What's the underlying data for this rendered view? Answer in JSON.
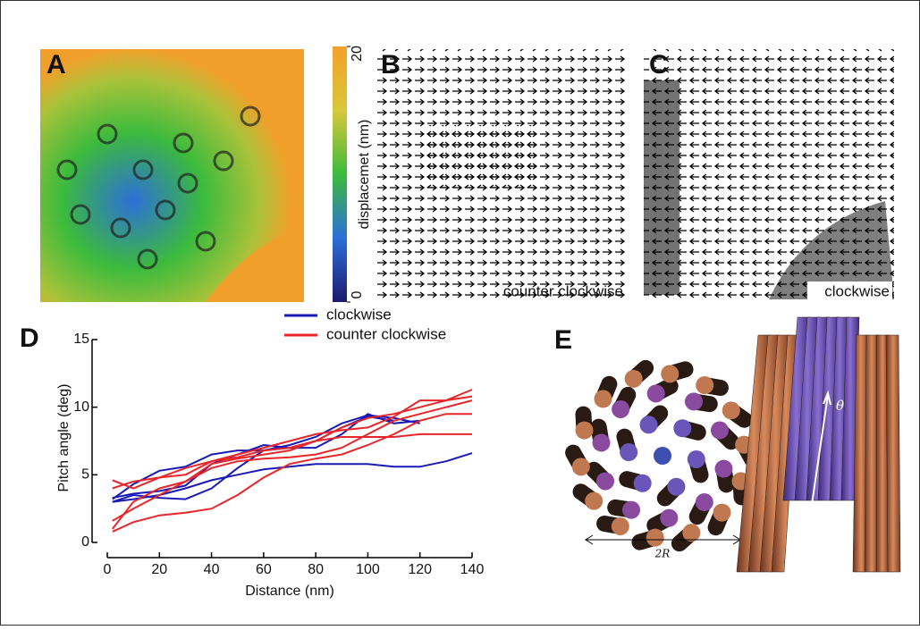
{
  "panel_labels": [
    "A",
    "B",
    "C",
    "D",
    "E"
  ],
  "colorbar": {
    "label": "displacemet (nm)",
    "ticks": [
      0,
      20
    ],
    "lim": [
      0,
      20
    ]
  },
  "annotations": {
    "B": "counter clockwise",
    "C": "clockwise",
    "E_width": "2R",
    "E_angle": "θ"
  },
  "chart_data": {
    "type": "line",
    "xlabel": "Distance (nm)",
    "ylabel": "Pitch angle  (deg)",
    "xlim": [
      0,
      140
    ],
    "ylim": [
      0,
      15
    ],
    "xticks": [
      0,
      20,
      40,
      60,
      80,
      100,
      120,
      140
    ],
    "yticks": [
      0,
      5,
      10,
      15
    ],
    "legend": [
      {
        "name": "clockwise",
        "color": "#1a1ab8"
      },
      {
        "name": "counter clockwise",
        "color": "#e8262a"
      }
    ],
    "x": [
      2,
      10,
      20,
      30,
      40,
      50,
      60,
      70,
      80,
      90,
      100,
      110,
      120,
      130,
      140
    ],
    "series": [
      {
        "color": "#1a1ab8",
        "values": [
          3.2,
          4.3,
          5.3,
          5.6,
          6.5,
          6.8,
          6.8,
          7.2,
          7.8,
          8.8,
          9.4,
          9.2,
          8.8,
          null,
          null
        ]
      },
      {
        "color": "#1a1ab8",
        "values": [
          3.0,
          3.2,
          3.5,
          4.0,
          4.6,
          5.0,
          5.4,
          5.6,
          5.8,
          5.8,
          5.8,
          5.6,
          5.6,
          6.0,
          6.6
        ]
      },
      {
        "color": "#1a1ab8",
        "values": [
          3.0,
          3.5,
          3.3,
          3.2,
          4.0,
          5.5,
          6.8,
          7.0,
          7.5,
          8.5,
          9.3,
          9.0,
          null,
          null,
          null
        ]
      },
      {
        "color": "#1a1ab8",
        "values": [
          3.3,
          3.6,
          3.8,
          4.2,
          5.8,
          6.5,
          7.2,
          7.0,
          7.0,
          8.0,
          9.5,
          8.8,
          9.0,
          null,
          null
        ]
      },
      {
        "color": "#e8262a",
        "values": [
          4.6,
          4.0,
          4.8,
          5.5,
          6.0,
          6.3,
          6.8,
          7.0,
          7.5,
          7.8,
          7.8,
          7.8,
          8.0,
          8.0,
          8.0
        ]
      },
      {
        "color": "#e8262a",
        "values": [
          1.6,
          2.5,
          3.5,
          4.5,
          5.8,
          6.2,
          6.5,
          6.8,
          7.5,
          8.5,
          9.2,
          9.5,
          10.0,
          10.5,
          11.3
        ]
      },
      {
        "color": "#e8262a",
        "values": [
          0.8,
          1.5,
          2.0,
          2.2,
          2.5,
          3.5,
          4.8,
          5.8,
          6.2,
          6.5,
          7.2,
          8.0,
          9.0,
          9.5,
          9.5
        ]
      },
      {
        "color": "#e8262a",
        "values": [
          1.0,
          3.0,
          4.0,
          4.5,
          5.5,
          6.0,
          6.2,
          6.3,
          6.5,
          7.0,
          8.0,
          9.0,
          9.5,
          10.0,
          10.5
        ]
      },
      {
        "color": "#e8262a",
        "values": [
          4.0,
          4.5,
          4.8,
          5.0,
          6.0,
          6.5,
          7.0,
          7.5,
          8.0,
          8.3,
          8.5,
          9.3,
          10.5,
          10.5,
          10.8
        ]
      }
    ]
  }
}
